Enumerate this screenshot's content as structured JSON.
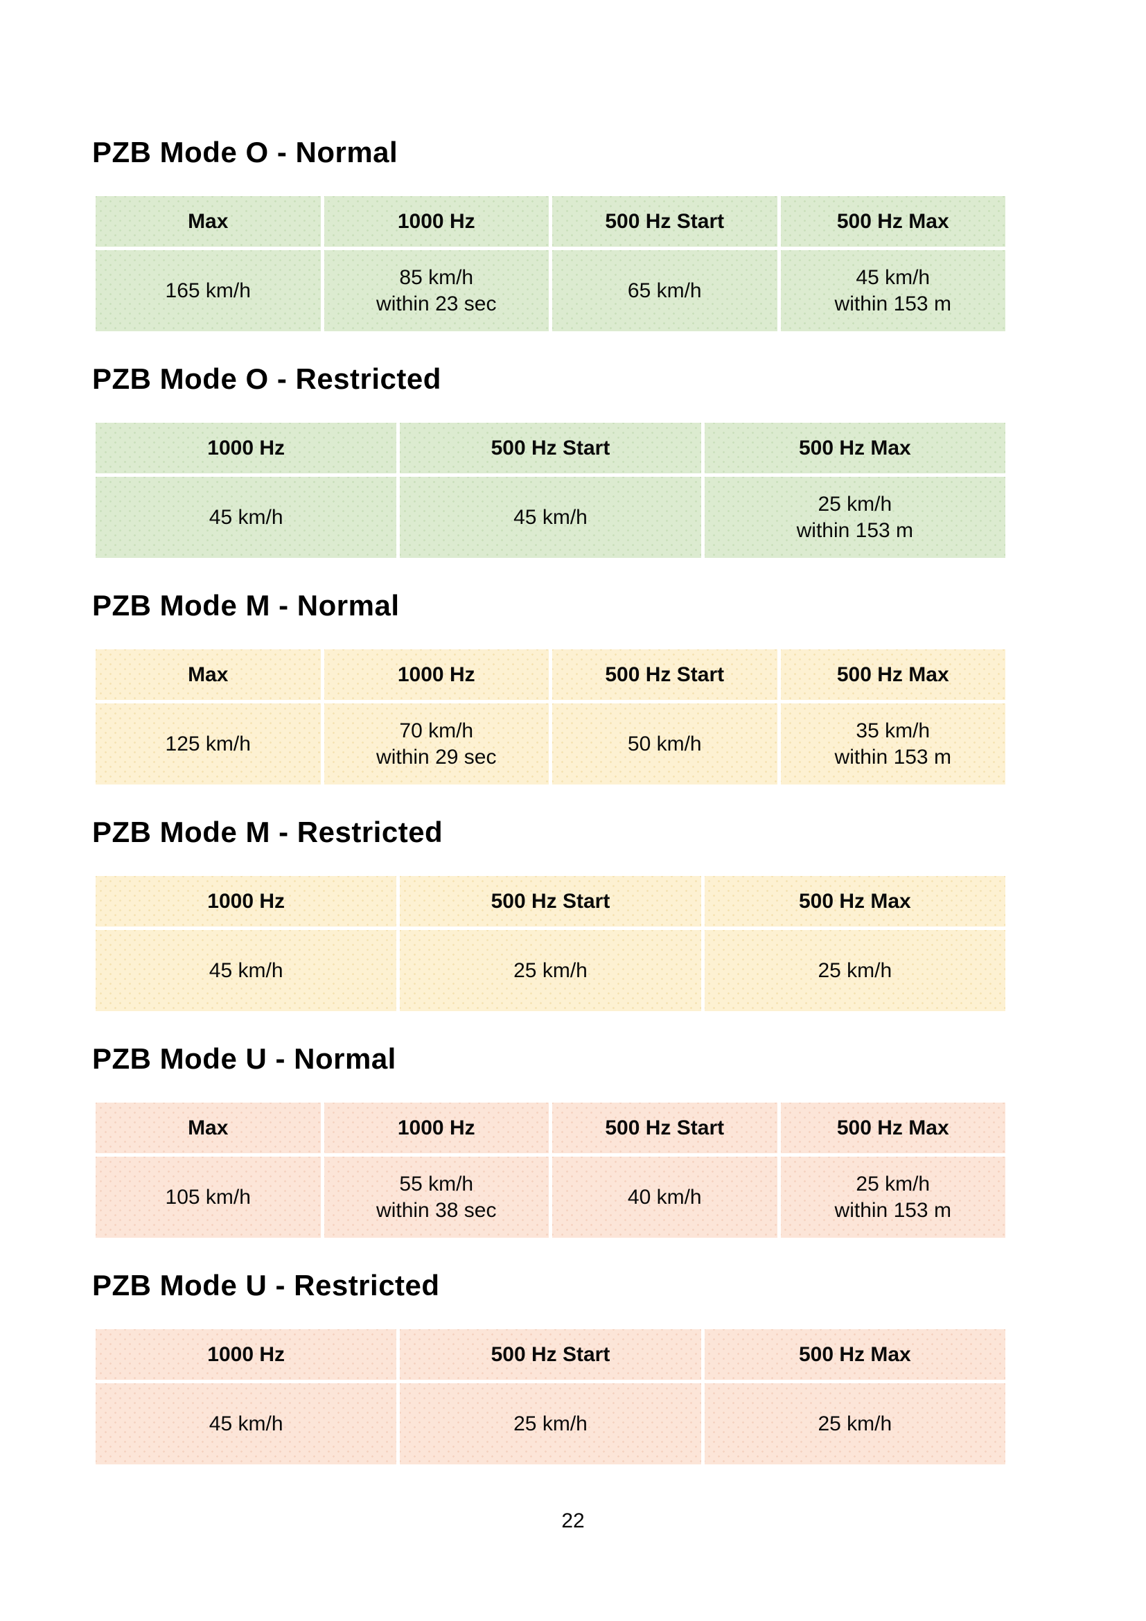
{
  "page": {
    "number": "22"
  },
  "colors": {
    "green": {
      "bg": "#dcebd0",
      "dot": "#c9dfba"
    },
    "yellow": {
      "bg": "#fdf1d2",
      "dot": "#f5e2b2"
    },
    "peach": {
      "bg": "#fce5d8",
      "dot": "#f5d2c0"
    }
  },
  "sections": [
    {
      "title": "PZB Mode O - Normal",
      "theme": "green",
      "columns": [
        "Max",
        "1000 Hz",
        "500 Hz Start",
        "500 Hz Max"
      ],
      "values": [
        [
          "165 km/h"
        ],
        [
          "85 km/h",
          "within 23 sec"
        ],
        [
          "65 km/h"
        ],
        [
          "45 km/h",
          "within 153 m"
        ]
      ]
    },
    {
      "title": "PZB Mode O - Restricted",
      "theme": "green",
      "columns": [
        "1000 Hz",
        "500 Hz Start",
        "500 Hz Max"
      ],
      "values": [
        [
          "45 km/h"
        ],
        [
          "45 km/h"
        ],
        [
          "25 km/h",
          "within 153 m"
        ]
      ]
    },
    {
      "title": "PZB Mode M - Normal",
      "theme": "yellow",
      "columns": [
        "Max",
        "1000 Hz",
        "500 Hz Start",
        "500 Hz Max"
      ],
      "values": [
        [
          "125 km/h"
        ],
        [
          "70 km/h",
          "within 29 sec"
        ],
        [
          "50 km/h"
        ],
        [
          "35 km/h",
          "within 153 m"
        ]
      ]
    },
    {
      "title": "PZB Mode M - Restricted",
      "theme": "yellow",
      "columns": [
        "1000 Hz",
        "500 Hz Start",
        "500 Hz Max"
      ],
      "values": [
        [
          "45 km/h"
        ],
        [
          "25 km/h"
        ],
        [
          "25 km/h"
        ]
      ]
    },
    {
      "title": "PZB Mode U - Normal",
      "theme": "peach",
      "columns": [
        "Max",
        "1000 Hz",
        "500 Hz Start",
        "500 Hz Max"
      ],
      "values": [
        [
          "105 km/h"
        ],
        [
          "55 km/h",
          "within 38 sec"
        ],
        [
          "40 km/h"
        ],
        [
          "25 km/h",
          "within 153 m"
        ]
      ]
    },
    {
      "title": "PZB Mode U - Restricted",
      "theme": "peach",
      "columns": [
        "1000 Hz",
        "500 Hz Start",
        "500 Hz Max"
      ],
      "values": [
        [
          "45 km/h"
        ],
        [
          "25 km/h"
        ],
        [
          "25 km/h"
        ]
      ]
    }
  ]
}
